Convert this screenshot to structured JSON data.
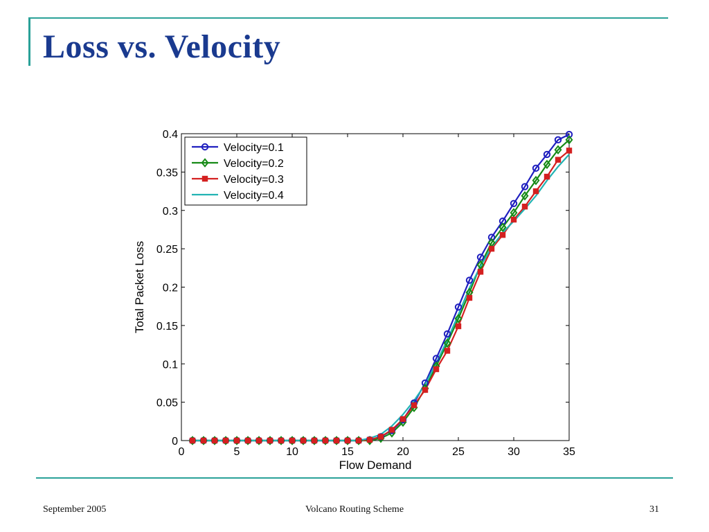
{
  "slide": {
    "title": "Loss vs. Velocity",
    "footer_left": "September 2005",
    "footer_center": "Volcano Routing Scheme",
    "footer_right": "31"
  },
  "colors": {
    "title": "#1a3a8f",
    "accent": "#2aa198"
  },
  "chart_data": {
    "type": "line",
    "xlabel": "Flow Demand",
    "ylabel": "Total Packet Loss",
    "xlim": [
      0,
      35
    ],
    "ylim": [
      0,
      0.4
    ],
    "xticks": [
      0,
      5,
      10,
      15,
      20,
      25,
      30,
      35
    ],
    "yticks": [
      0,
      0.05,
      0.1,
      0.15,
      0.2,
      0.25,
      0.3,
      0.35,
      0.4
    ],
    "ytick_labels": [
      "0",
      "0.05",
      "0.1",
      "0.15",
      "0.2",
      "0.25",
      "0.3",
      "0.35",
      "0.4"
    ],
    "grid": false,
    "legend_position": "top-left",
    "x": [
      1,
      2,
      3,
      4,
      5,
      6,
      7,
      8,
      9,
      10,
      11,
      12,
      13,
      14,
      15,
      16,
      17,
      18,
      19,
      20,
      21,
      22,
      23,
      24,
      25,
      26,
      27,
      28,
      29,
      30,
      31,
      32,
      33,
      34,
      35
    ],
    "series": [
      {
        "name": "Velocity=0.1",
        "color": "#1f1fbf",
        "marker": "circle",
        "values": [
          0,
          0,
          0,
          0,
          0,
          0,
          0,
          0,
          0,
          0,
          0,
          0,
          0,
          0,
          0,
          0,
          0.001,
          0.005,
          0.013,
          0.027,
          0.049,
          0.075,
          0.107,
          0.139,
          0.174,
          0.209,
          0.239,
          0.265,
          0.286,
          0.309,
          0.331,
          0.355,
          0.373,
          0.392,
          0.399
        ]
      },
      {
        "name": "Velocity=0.2",
        "color": "#168a16",
        "marker": "diamond",
        "values": [
          0,
          0,
          0,
          0,
          0,
          0,
          0,
          0,
          0,
          0,
          0,
          0,
          0,
          0,
          0,
          0,
          0,
          0.003,
          0.01,
          0.024,
          0.043,
          0.068,
          0.097,
          0.127,
          0.159,
          0.193,
          0.229,
          0.258,
          0.278,
          0.297,
          0.319,
          0.339,
          0.36,
          0.379,
          0.392
        ]
      },
      {
        "name": "Velocity=0.3",
        "color": "#d42020",
        "marker": "square",
        "values": [
          0,
          0,
          0,
          0,
          0,
          0,
          0,
          0,
          0,
          0,
          0,
          0,
          0,
          0,
          0,
          0,
          0.001,
          0.005,
          0.014,
          0.028,
          0.046,
          0.066,
          0.093,
          0.117,
          0.149,
          0.186,
          0.22,
          0.25,
          0.268,
          0.288,
          0.305,
          0.325,
          0.344,
          0.366,
          0.378
        ]
      },
      {
        "name": "Velocity=0.4",
        "color": "#22b3b3",
        "marker": "none",
        "values": [
          0,
          0,
          0,
          0,
          0,
          0,
          0,
          0,
          0,
          0,
          0,
          0,
          0,
          0,
          0,
          0,
          0.003,
          0.008,
          0.019,
          0.034,
          0.052,
          0.073,
          0.101,
          0.131,
          0.164,
          0.199,
          0.227,
          0.252,
          0.271,
          0.286,
          0.302,
          0.319,
          0.339,
          0.357,
          0.373
        ]
      }
    ]
  }
}
